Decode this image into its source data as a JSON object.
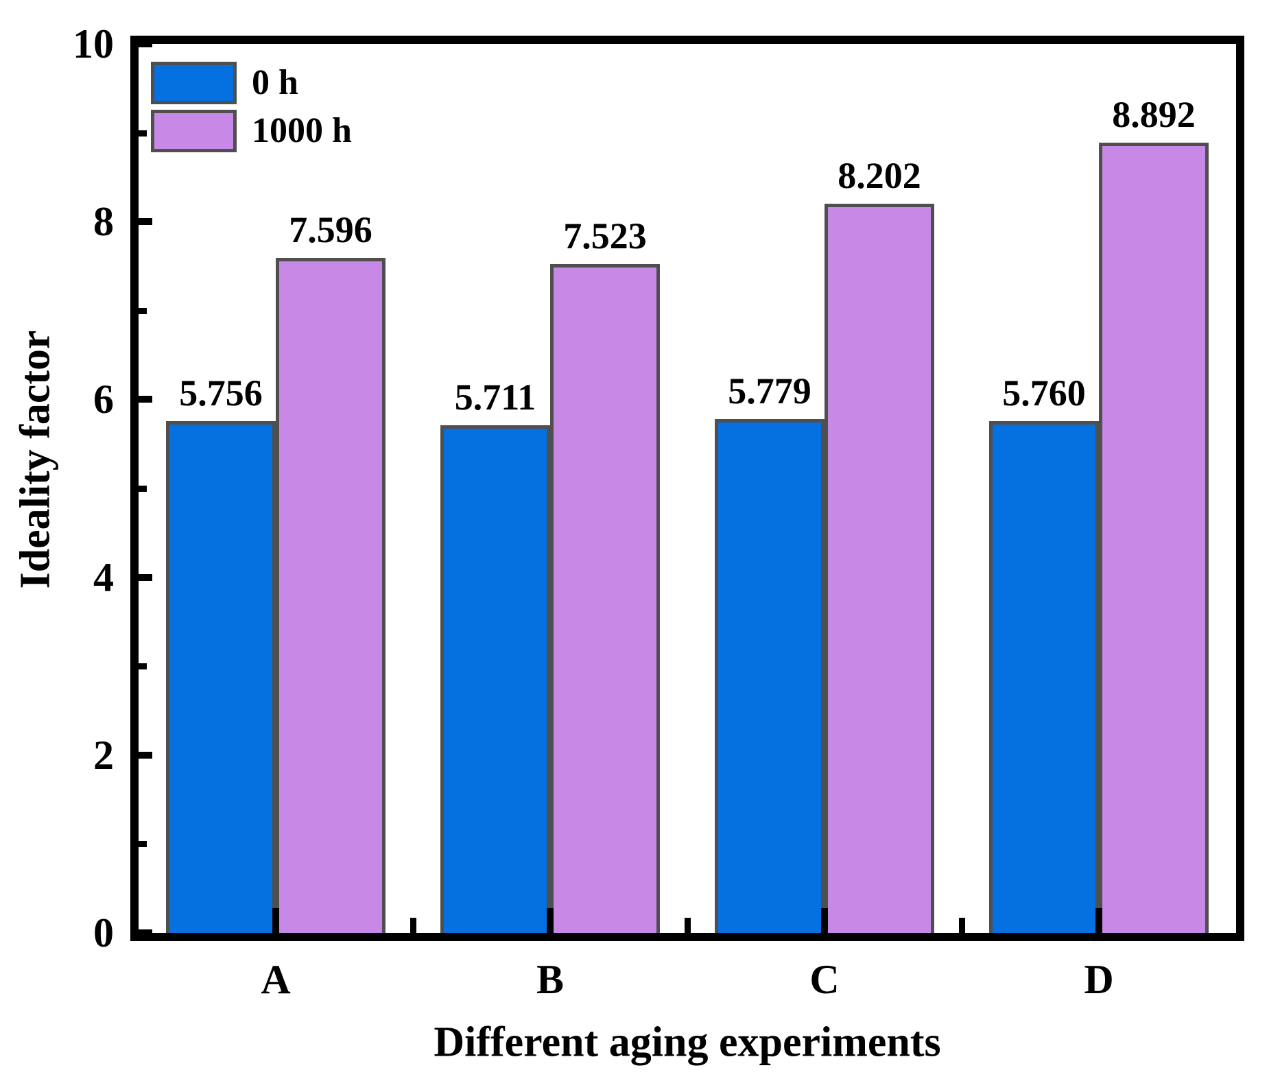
{
  "chart_data": {
    "type": "bar",
    "title": "",
    "categories": [
      "A",
      "B",
      "C",
      "D"
    ],
    "series": [
      {
        "name": "0 h",
        "color": "#0571E1",
        "values": [
          5.756,
          5.711,
          5.779,
          5.76
        ],
        "labels": [
          "5.756",
          "5.711",
          "5.779",
          "5.760"
        ]
      },
      {
        "name": "1000 h",
        "color": "#C888E6",
        "values": [
          7.596,
          7.523,
          8.202,
          8.892
        ],
        "labels": [
          "7.596",
          "7.523",
          "8.202",
          "8.892"
        ]
      }
    ],
    "xlabel": "Different aging experiments",
    "ylabel": "Ideality factor",
    "ylim": [
      0,
      10
    ],
    "yticks": [
      0,
      2,
      4,
      6,
      8,
      10
    ],
    "ytick_labels": [
      "0",
      "2",
      "4",
      "6",
      "8",
      "10"
    ],
    "yticks_minor": [
      1,
      3,
      5,
      7,
      9
    ],
    "bar_edge_color": "#4F4F4F",
    "axis_color": "#000000",
    "background_color": "#FFFFFF",
    "grid": false,
    "legend_position": "top-left",
    "value_labels_shown": true
  }
}
